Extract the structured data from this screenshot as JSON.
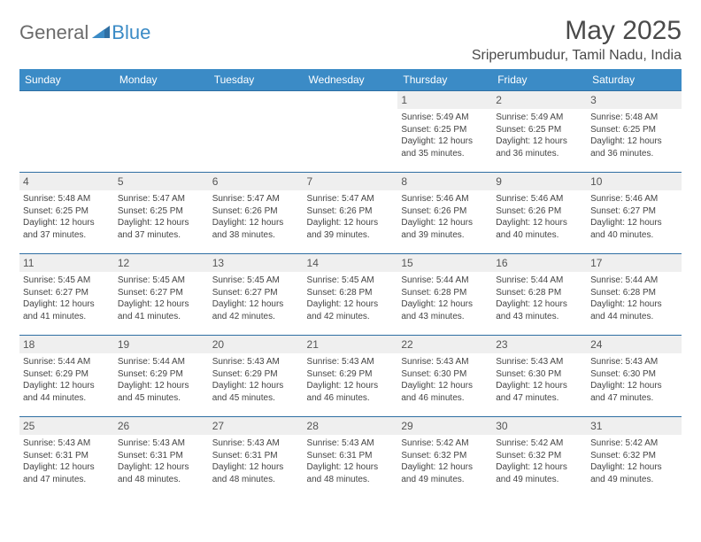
{
  "brand": {
    "part1": "General",
    "part2": "Blue"
  },
  "title": "May 2025",
  "location": "Sriperumbudur, Tamil Nadu, India",
  "colors": {
    "header_bg": "#3b8bc6",
    "header_text": "#ffffff",
    "row_border": "#2f6fa3",
    "daynum_bg": "#efefef",
    "body_text": "#444444",
    "logo_gray": "#6b6b6b",
    "logo_blue": "#3b8bc6"
  },
  "typography": {
    "title_fontsize": 30,
    "location_fontsize": 16,
    "header_fontsize": 12,
    "daynum_fontsize": 12,
    "info_fontsize": 10
  },
  "day_headers": [
    "Sunday",
    "Monday",
    "Tuesday",
    "Wednesday",
    "Thursday",
    "Friday",
    "Saturday"
  ],
  "weeks": [
    [
      null,
      null,
      null,
      null,
      {
        "n": "1",
        "sr": "5:49 AM",
        "ss": "6:25 PM",
        "dl": "12 hours and 35 minutes."
      },
      {
        "n": "2",
        "sr": "5:49 AM",
        "ss": "6:25 PM",
        "dl": "12 hours and 36 minutes."
      },
      {
        "n": "3",
        "sr": "5:48 AM",
        "ss": "6:25 PM",
        "dl": "12 hours and 36 minutes."
      }
    ],
    [
      {
        "n": "4",
        "sr": "5:48 AM",
        "ss": "6:25 PM",
        "dl": "12 hours and 37 minutes."
      },
      {
        "n": "5",
        "sr": "5:47 AM",
        "ss": "6:25 PM",
        "dl": "12 hours and 37 minutes."
      },
      {
        "n": "6",
        "sr": "5:47 AM",
        "ss": "6:26 PM",
        "dl": "12 hours and 38 minutes."
      },
      {
        "n": "7",
        "sr": "5:47 AM",
        "ss": "6:26 PM",
        "dl": "12 hours and 39 minutes."
      },
      {
        "n": "8",
        "sr": "5:46 AM",
        "ss": "6:26 PM",
        "dl": "12 hours and 39 minutes."
      },
      {
        "n": "9",
        "sr": "5:46 AM",
        "ss": "6:26 PM",
        "dl": "12 hours and 40 minutes."
      },
      {
        "n": "10",
        "sr": "5:46 AM",
        "ss": "6:27 PM",
        "dl": "12 hours and 40 minutes."
      }
    ],
    [
      {
        "n": "11",
        "sr": "5:45 AM",
        "ss": "6:27 PM",
        "dl": "12 hours and 41 minutes."
      },
      {
        "n": "12",
        "sr": "5:45 AM",
        "ss": "6:27 PM",
        "dl": "12 hours and 41 minutes."
      },
      {
        "n": "13",
        "sr": "5:45 AM",
        "ss": "6:27 PM",
        "dl": "12 hours and 42 minutes."
      },
      {
        "n": "14",
        "sr": "5:45 AM",
        "ss": "6:28 PM",
        "dl": "12 hours and 42 minutes."
      },
      {
        "n": "15",
        "sr": "5:44 AM",
        "ss": "6:28 PM",
        "dl": "12 hours and 43 minutes."
      },
      {
        "n": "16",
        "sr": "5:44 AM",
        "ss": "6:28 PM",
        "dl": "12 hours and 43 minutes."
      },
      {
        "n": "17",
        "sr": "5:44 AM",
        "ss": "6:28 PM",
        "dl": "12 hours and 44 minutes."
      }
    ],
    [
      {
        "n": "18",
        "sr": "5:44 AM",
        "ss": "6:29 PM",
        "dl": "12 hours and 44 minutes."
      },
      {
        "n": "19",
        "sr": "5:44 AM",
        "ss": "6:29 PM",
        "dl": "12 hours and 45 minutes."
      },
      {
        "n": "20",
        "sr": "5:43 AM",
        "ss": "6:29 PM",
        "dl": "12 hours and 45 minutes."
      },
      {
        "n": "21",
        "sr": "5:43 AM",
        "ss": "6:29 PM",
        "dl": "12 hours and 46 minutes."
      },
      {
        "n": "22",
        "sr": "5:43 AM",
        "ss": "6:30 PM",
        "dl": "12 hours and 46 minutes."
      },
      {
        "n": "23",
        "sr": "5:43 AM",
        "ss": "6:30 PM",
        "dl": "12 hours and 47 minutes."
      },
      {
        "n": "24",
        "sr": "5:43 AM",
        "ss": "6:30 PM",
        "dl": "12 hours and 47 minutes."
      }
    ],
    [
      {
        "n": "25",
        "sr": "5:43 AM",
        "ss": "6:31 PM",
        "dl": "12 hours and 47 minutes."
      },
      {
        "n": "26",
        "sr": "5:43 AM",
        "ss": "6:31 PM",
        "dl": "12 hours and 48 minutes."
      },
      {
        "n": "27",
        "sr": "5:43 AM",
        "ss": "6:31 PM",
        "dl": "12 hours and 48 minutes."
      },
      {
        "n": "28",
        "sr": "5:43 AM",
        "ss": "6:31 PM",
        "dl": "12 hours and 48 minutes."
      },
      {
        "n": "29",
        "sr": "5:42 AM",
        "ss": "6:32 PM",
        "dl": "12 hours and 49 minutes."
      },
      {
        "n": "30",
        "sr": "5:42 AM",
        "ss": "6:32 PM",
        "dl": "12 hours and 49 minutes."
      },
      {
        "n": "31",
        "sr": "5:42 AM",
        "ss": "6:32 PM",
        "dl": "12 hours and 49 minutes."
      }
    ]
  ],
  "labels": {
    "sunrise": "Sunrise: ",
    "sunset": "Sunset: ",
    "daylight": "Daylight: "
  }
}
